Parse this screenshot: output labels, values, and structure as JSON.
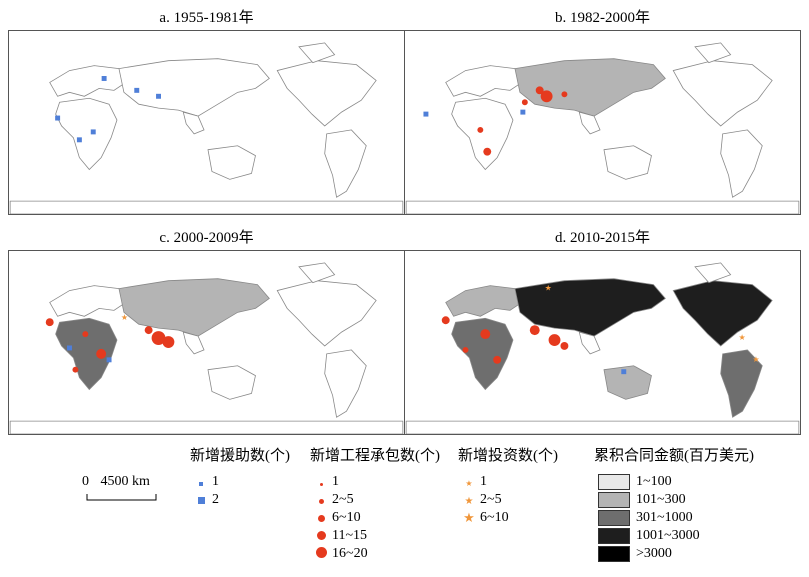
{
  "panels": [
    {
      "id": "a",
      "title": "a. 1955-1981年"
    },
    {
      "id": "b",
      "title": "b. 1982-2000年"
    },
    {
      "id": "c",
      "title": "c. 2000-2009年"
    },
    {
      "id": "d",
      "title": "d. 2010-2015年"
    }
  ],
  "scale_bar": {
    "zero": "0",
    "distance": "4500 km"
  },
  "legend": {
    "aid": {
      "title": "新增援助数(个)",
      "items": [
        "1",
        "2"
      ],
      "color": "#4f7fd8"
    },
    "contracts": {
      "title": "新增工程承包数(个)",
      "items": [
        "1",
        "2~5",
        "6~10",
        "11~15",
        "16~20"
      ],
      "color": "#e53a1e"
    },
    "investment": {
      "title": "新增投资数(个)",
      "items": [
        "1",
        "2~5",
        "6~10"
      ],
      "color": "#f0963a"
    },
    "contract_value": {
      "title": "累积合同金额(百万美元)",
      "items": [
        "1~100",
        "101~300",
        "301~1000",
        "1001~3000",
        ">3000"
      ],
      "colors": [
        "#e8e8e8",
        "#b4b4b4",
        "#6e6e6e",
        "#1e1e1e",
        "#000000"
      ]
    }
  }
}
